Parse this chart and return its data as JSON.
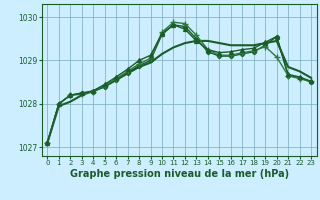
{
  "background_color": "#cceeff",
  "plot_bg_color": "#cceeff",
  "grid_color": "#7aaabb",
  "line_color_dark": "#1a5c2a",
  "line_color_light": "#2d7a3a",
  "xlabel": "Graphe pression niveau de la mer (hPa)",
  "xlabel_fontsize": 7.0,
  "xlim": [
    -0.5,
    23.5
  ],
  "ylim": [
    1026.8,
    1030.3
  ],
  "yticks": [
    1027,
    1028,
    1029,
    1030
  ],
  "xticks": [
    0,
    1,
    2,
    3,
    4,
    5,
    6,
    7,
    8,
    9,
    10,
    11,
    12,
    13,
    14,
    15,
    16,
    17,
    18,
    19,
    20,
    21,
    22,
    23
  ],
  "series": [
    {
      "x": [
        0,
        1,
        2,
        3,
        4,
        5,
        6,
        7,
        8,
        9,
        10,
        11,
        12,
        13,
        14,
        15,
        16,
        17,
        18,
        19,
        20,
        21,
        22,
        23
      ],
      "y": [
        1027.1,
        1027.95,
        1028.05,
        1028.2,
        1028.3,
        1028.4,
        1028.55,
        1028.7,
        1028.85,
        1028.95,
        1029.15,
        1029.3,
        1029.4,
        1029.45,
        1029.45,
        1029.4,
        1029.35,
        1029.35,
        1029.35,
        1029.4,
        1029.45,
        1028.85,
        1028.75,
        1028.6
      ],
      "marker": "None",
      "markersize": 0,
      "linewidth": 1.5,
      "linestyle": "-",
      "color": "#1a5c2a"
    },
    {
      "x": [
        0,
        1,
        2,
        3,
        4,
        5,
        6,
        7,
        8,
        9,
        10,
        11,
        12,
        13,
        14,
        15,
        16,
        17,
        18,
        19,
        20,
        21,
        22,
        23
      ],
      "y": [
        1027.1,
        1028.0,
        1028.2,
        1028.25,
        1028.28,
        1028.4,
        1028.55,
        1028.72,
        1028.88,
        1029.0,
        1029.6,
        1029.82,
        1029.78,
        1029.5,
        1029.2,
        1029.1,
        1029.1,
        1029.15,
        1029.2,
        1029.35,
        1029.55,
        1028.65,
        1028.6,
        1028.5
      ],
      "marker": "D",
      "markersize": 2.2,
      "linewidth": 1.0,
      "linestyle": "-",
      "color": "#1a5c2a"
    },
    {
      "x": [
        0,
        1,
        2,
        3,
        4,
        5,
        6,
        7,
        8,
        9,
        10,
        11,
        12,
        13,
        14,
        15,
        16,
        17,
        18,
        19,
        20,
        21,
        22,
        23
      ],
      "y": [
        1027.1,
        1028.0,
        1028.2,
        1028.22,
        1028.28,
        1028.42,
        1028.58,
        1028.75,
        1028.92,
        1029.05,
        1029.65,
        1029.88,
        1029.85,
        1029.58,
        1029.25,
        1029.12,
        1029.12,
        1029.18,
        1029.22,
        1029.32,
        1029.08,
        1028.65,
        1028.58,
        1028.52
      ],
      "marker": "+",
      "markersize": 4.5,
      "linewidth": 1.0,
      "linestyle": "-",
      "color": "#2d7a3a"
    },
    {
      "x": [
        0,
        1,
        2,
        3,
        4,
        5,
        6,
        7,
        8,
        9,
        10,
        11,
        12,
        13,
        14,
        15,
        16,
        17,
        18,
        19,
        20,
        21,
        22,
        23
      ],
      "y": [
        1027.1,
        1028.0,
        1028.2,
        1028.25,
        1028.3,
        1028.45,
        1028.62,
        1028.8,
        1029.0,
        1029.12,
        1029.62,
        1029.82,
        1029.72,
        1029.45,
        1029.25,
        1029.18,
        1029.2,
        1029.25,
        1029.28,
        1029.42,
        1029.55,
        1028.68,
        1028.62,
        1028.52
      ],
      "marker": "^",
      "markersize": 2.8,
      "linewidth": 1.0,
      "linestyle": "-",
      "color": "#1a5c2a"
    }
  ]
}
